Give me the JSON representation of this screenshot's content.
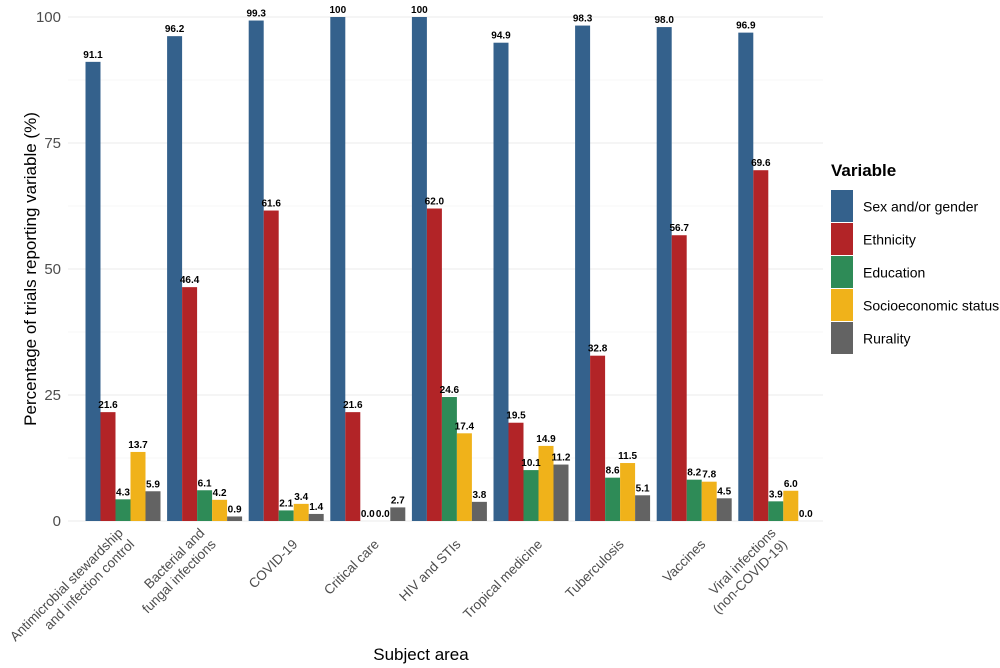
{
  "chart_data": {
    "type": "bar",
    "xlabel": "Subject area",
    "ylabel": "Percentage of trials reporting variable (%)",
    "ylim": [
      0,
      100
    ],
    "yticks": [
      0,
      25,
      50,
      75,
      100
    ],
    "grid": true,
    "legend_title": "Variable",
    "legend_position": "right",
    "categories": [
      "Antimicrobial stewardship\nand infection control",
      "Bacterial and\nfungal infections",
      "COVID-19",
      "Critical care",
      "HIV and STIs",
      "Tropical medicine",
      "Tuberculosis",
      "Vaccines",
      "Viral infections\n(non-COVID-19)"
    ],
    "series": [
      {
        "name": "Sex and/or gender",
        "color": "#34618c",
        "values": [
          91.1,
          96.2,
          99.3,
          100,
          100,
          94.9,
          98.3,
          98.0,
          96.9
        ],
        "labels": [
          "91.1",
          "96.2",
          "99.3",
          "100",
          "100",
          "94.9",
          "98.3",
          "98.0",
          "96.9"
        ]
      },
      {
        "name": "Ethnicity",
        "color": "#b22427",
        "values": [
          21.6,
          46.4,
          61.6,
          21.6,
          62.0,
          19.5,
          32.8,
          56.7,
          69.6
        ],
        "labels": [
          "21.6",
          "46.4",
          "61.6",
          "21.6",
          "62.0",
          "19.5",
          "32.8",
          "56.7",
          "69.6"
        ]
      },
      {
        "name": "Education",
        "color": "#2e8b57",
        "values": [
          4.3,
          6.1,
          2.1,
          0.0,
          24.6,
          10.1,
          8.6,
          8.2,
          3.9
        ],
        "labels": [
          "4.3",
          "6.1",
          "2.1",
          "0.0",
          "24.6",
          "10.1",
          "8.6",
          "8.2",
          "3.9"
        ]
      },
      {
        "name": "Socioeconomic status",
        "color": "#f0b21a",
        "values": [
          13.7,
          4.2,
          3.4,
          0.0,
          17.4,
          14.9,
          11.5,
          7.8,
          6.0
        ],
        "labels": [
          "13.7",
          "4.2",
          "3.4",
          "0.0",
          "17.4",
          "14.9",
          "11.5",
          "7.8",
          "6.0"
        ]
      },
      {
        "name": "Rurality",
        "color": "#636363",
        "values": [
          5.9,
          0.9,
          1.4,
          2.7,
          3.8,
          11.2,
          5.1,
          4.5,
          0.0
        ],
        "labels": [
          "5.9",
          "0.9",
          "1.4",
          "2.7",
          "3.8",
          "11.2",
          "5.1",
          "4.5",
          "0.0"
        ]
      }
    ]
  }
}
